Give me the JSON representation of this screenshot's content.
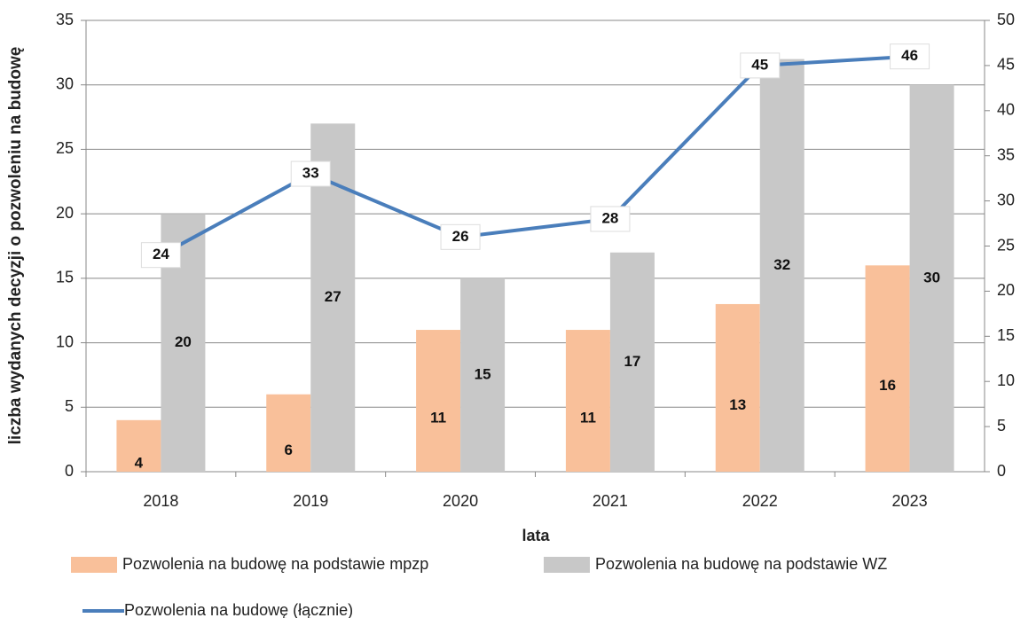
{
  "chart_data": {
    "type": "bar",
    "y_label": "liczba wydanych decyzji o pozwoleniu na budowę",
    "x_label": "lata",
    "categories": [
      "2018",
      "2019",
      "2020",
      "2021",
      "2022",
      "2023"
    ],
    "series": [
      {
        "name": "Pozwolenia na budowę na podstawie mpzp",
        "color": "#f9c09a",
        "values": [
          4,
          6,
          11,
          11,
          13,
          16
        ]
      },
      {
        "name": "Pozwolenia na budowę na podstawie WZ",
        "color": "#c8c8c8",
        "values": [
          20,
          27,
          15,
          17,
          32,
          30
        ]
      },
      {
        "name": "Pozwolenia na budowę (łącznie)",
        "color": "#4a7ebb",
        "type": "line",
        "axis": "y2",
        "values": [
          24,
          33,
          26,
          28,
          45,
          46
        ]
      }
    ],
    "ylim": [
      0,
      35
    ],
    "yticks": [
      0,
      5,
      10,
      15,
      20,
      25,
      30,
      35
    ],
    "y2lim": [
      0,
      50
    ],
    "y2ticks": [
      0,
      5,
      10,
      15,
      20,
      25,
      30,
      35,
      40,
      45,
      50
    ],
    "grid": true
  }
}
